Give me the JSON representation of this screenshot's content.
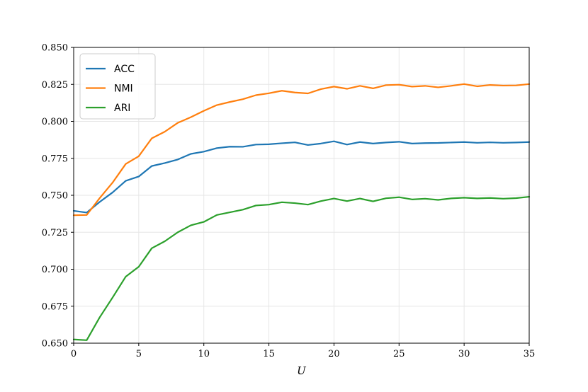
{
  "chart_data": {
    "type": "line",
    "title": "",
    "xlabel": "U",
    "ylabel": "",
    "xlim": [
      0,
      35
    ],
    "ylim": [
      0.65,
      0.85
    ],
    "xticks": [
      0,
      5,
      10,
      15,
      20,
      25,
      30,
      35
    ],
    "yticks": [
      0.65,
      0.675,
      0.7,
      0.725,
      0.75,
      0.775,
      0.8,
      0.825,
      0.85
    ],
    "xtick_labels": [
      "0",
      "5",
      "10",
      "15",
      "20",
      "25",
      "30",
      "35"
    ],
    "ytick_labels": [
      "0.650",
      "0.675",
      "0.700",
      "0.725",
      "0.750",
      "0.775",
      "0.800",
      "0.825",
      "0.850"
    ],
    "grid": true,
    "legend_position": "top-left",
    "x": [
      0,
      1,
      2,
      3,
      4,
      5,
      6,
      7,
      8,
      9,
      10,
      11,
      12,
      13,
      14,
      15,
      16,
      17,
      18,
      19,
      20,
      21,
      22,
      23,
      24,
      25,
      26,
      27,
      28,
      29,
      30,
      31,
      32,
      33,
      34,
      35
    ],
    "series": [
      {
        "name": "ACC",
        "color": "#1f77b4",
        "values": [
          0.7395,
          0.7383,
          0.7455,
          0.752,
          0.7598,
          0.7627,
          0.7698,
          0.7718,
          0.7742,
          0.778,
          0.7795,
          0.7819,
          0.7829,
          0.7828,
          0.7843,
          0.7845,
          0.7852,
          0.7858,
          0.784,
          0.785,
          0.7865,
          0.7843,
          0.786,
          0.785,
          0.7857,
          0.7862,
          0.785,
          0.7853,
          0.7854,
          0.7857,
          0.786,
          0.7855,
          0.7858,
          0.7855,
          0.7857,
          0.786
        ]
      },
      {
        "name": "NMI",
        "color": "#ff7f0e",
        "values": [
          0.7365,
          0.7367,
          0.7481,
          0.7587,
          0.7712,
          0.7764,
          0.7885,
          0.793,
          0.799,
          0.8028,
          0.8071,
          0.811,
          0.8131,
          0.815,
          0.8177,
          0.819,
          0.8207,
          0.8195,
          0.8189,
          0.8218,
          0.8235,
          0.822,
          0.824,
          0.8223,
          0.8245,
          0.8248,
          0.8235,
          0.824,
          0.823,
          0.824,
          0.8252,
          0.8237,
          0.8246,
          0.8242,
          0.8243,
          0.8252
        ]
      },
      {
        "name": "ARI",
        "color": "#2ca02c",
        "values": [
          0.6525,
          0.652,
          0.6675,
          0.681,
          0.695,
          0.7017,
          0.7142,
          0.7189,
          0.725,
          0.7297,
          0.732,
          0.7367,
          0.7385,
          0.7403,
          0.7431,
          0.7437,
          0.7453,
          0.7447,
          0.7437,
          0.7461,
          0.7478,
          0.7461,
          0.7478,
          0.7459,
          0.748,
          0.7487,
          0.7472,
          0.7477,
          0.7469,
          0.7479,
          0.7484,
          0.7479,
          0.7482,
          0.7477,
          0.7481,
          0.749
        ]
      }
    ]
  }
}
